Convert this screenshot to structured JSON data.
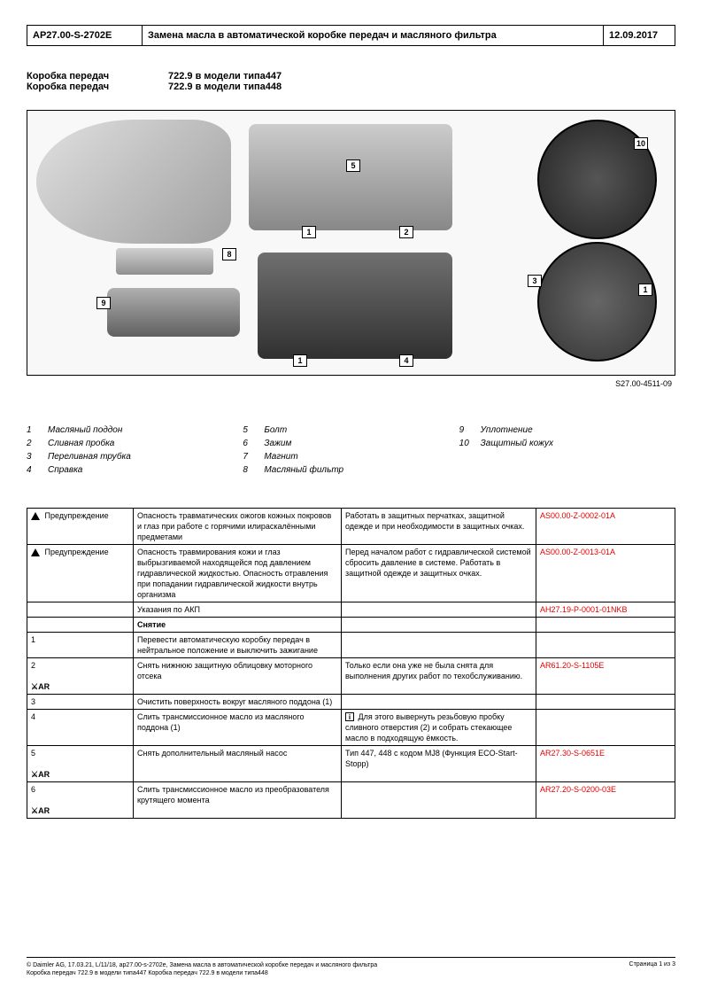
{
  "header": {
    "code": "AP27.00-S-2702E",
    "title": "Замена масла в автоматической коробке передач и масляного фильтра",
    "date": "12.09.2017"
  },
  "gearbox": {
    "label": "Коробка передач",
    "line1": "722.9 в модели типа447",
    "line2": "722.9 в модели типа448"
  },
  "figure_code": "S27.00-4511-09",
  "callouts": {
    "c1": "1",
    "c2": "2",
    "c3": "3",
    "c4": "4",
    "c5": "5",
    "c8": "8",
    "c9": "9",
    "c10": "10"
  },
  "legend": {
    "col1": [
      {
        "n": "1",
        "t": "Масляный поддон"
      },
      {
        "n": "2",
        "t": "Сливная пробка"
      },
      {
        "n": "3",
        "t": "Переливная трубка"
      },
      {
        "n": "4",
        "t": "Справка"
      }
    ],
    "col2": [
      {
        "n": "5",
        "t": "Болт"
      },
      {
        "n": "6",
        "t": "Зажим"
      },
      {
        "n": "7",
        "t": "Магнит"
      },
      {
        "n": "8",
        "t": "Масляный фильтр"
      }
    ],
    "col3": [
      {
        "n": "9",
        "t": "Уплотнение"
      },
      {
        "n": "10",
        "t": "Защитный кожух"
      }
    ]
  },
  "table": {
    "rows": [
      {
        "icon_type": "warn",
        "icon_text": "Предупреждение",
        "c1": "Опасность травматических ожогов кожных покровов и глаз при работе с горячими илираскалёнными предметами",
        "c2": "Работать в защитных перчатках, защитной одежде и при необходимости в защитных очках.",
        "ref": "AS00.00-Z-0002-01A"
      },
      {
        "icon_type": "warn",
        "icon_text": "Предупреждение",
        "c1": "Опасность травмирования кожи и глаз выбрызгиваемой находящейся под давлением гидравлической жидкостью. Опасность отравления при попадании гидравлической жидкости внутрь организма",
        "c2": "Перед началом работ с гидравлической системой сбросить давление в системе. Работать в защитной одежде и защитных очках.",
        "ref": "AS00.00-Z-0013-01A"
      },
      {
        "icon_type": "",
        "icon_text": "",
        "c1": "Указания по АКП",
        "c2": "",
        "ref": "AH27.19-P-0001-01NKB"
      },
      {
        "icon_type": "",
        "icon_text": "",
        "c1_bold": "Снятие",
        "c2": "",
        "ref": ""
      },
      {
        "icon_type": "",
        "icon_text": "1",
        "c1": "Перевести автоматическую коробку передач в нейтральное положение и выключить зажигание",
        "c2": "",
        "ref": ""
      },
      {
        "icon_type": "ar",
        "icon_text": "2",
        "c1": "Снять нижнюю защитную облицовку моторного отсека",
        "c2": "Только если она уже не была снята для выполнения других работ по техобслуживанию.",
        "ref": "AR61.20-S-1105E"
      },
      {
        "icon_type": "",
        "icon_text": "3",
        "c1": "Очистить поверхность вокруг масляного поддона (1)",
        "c2": "",
        "ref": ""
      },
      {
        "icon_type": "",
        "icon_text": "4",
        "c1": "Слить трансмиссионное масло из масляного поддона (1)",
        "c2_info": "Для этого вывернуть резьбовую пробку сливного отверстия (2) и собрать стекающее масло в подходящую ёмкость.",
        "ref": ""
      },
      {
        "icon_type": "ar",
        "icon_text": "5",
        "c1": "Снять дополнительный масляный насос",
        "c2": "Тип 447, 448 с кодом MJ8 (Функция ECO-Start-Stopp)",
        "ref": "AR27.30-S-0651E"
      },
      {
        "icon_type": "ar",
        "icon_text": "6",
        "c1": "Слить трансмиссионное масло из преобразователя крутящего момента",
        "c2": "",
        "ref": "AR27.20-S-0200-03E"
      }
    ]
  },
  "footer": {
    "left": "© Daimler AG, 17.03.21, L/11/18, ap27.00-s-2702e, Замена масла в автоматической коробке передач и масляного фильтра\nКоробка передач 722.9 в модели типа447 Коробка передач 722.9 в модели типа448",
    "right": "Страница 1 из 3"
  }
}
